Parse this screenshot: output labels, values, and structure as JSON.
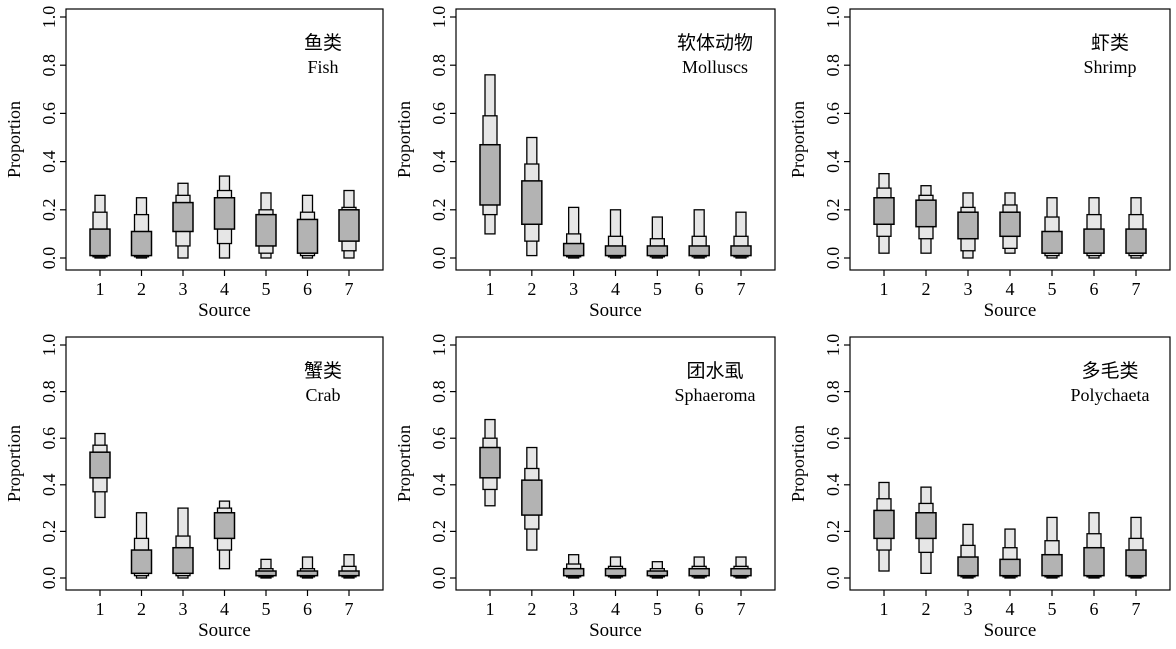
{
  "chart_data": [
    {
      "type": "boxplot",
      "title_cn": "鱼类",
      "title_en": "Fish",
      "xlabel": "Source",
      "ylabel": "Proportion",
      "ylim": [
        0,
        1
      ],
      "yticks": [
        "0.0",
        "0.2",
        "0.4",
        "0.6",
        "0.8",
        "1.0"
      ],
      "categories": [
        "1",
        "2",
        "3",
        "4",
        "5",
        "6",
        "7"
      ],
      "boxes": [
        {
          "q025": 0.0,
          "q05": 0.005,
          "q25": 0.01,
          "median": 0.05,
          "q75": 0.12,
          "q95": 0.19,
          "q975": 0.26
        },
        {
          "q025": 0.0,
          "q05": 0.005,
          "q25": 0.01,
          "median": 0.04,
          "q75": 0.11,
          "q95": 0.18,
          "q975": 0.25
        },
        {
          "q025": 0.0,
          "q05": 0.05,
          "q25": 0.11,
          "median": 0.18,
          "q75": 0.23,
          "q95": 0.26,
          "q975": 0.31
        },
        {
          "q025": 0.0,
          "q05": 0.06,
          "q25": 0.12,
          "median": 0.2,
          "q75": 0.25,
          "q95": 0.28,
          "q975": 0.34
        },
        {
          "q025": 0.0,
          "q05": 0.02,
          "q25": 0.05,
          "median": 0.12,
          "q75": 0.18,
          "q95": 0.2,
          "q975": 0.27
        },
        {
          "q025": 0.0,
          "q05": 0.01,
          "q25": 0.02,
          "median": 0.08,
          "q75": 0.16,
          "q95": 0.19,
          "q975": 0.26
        },
        {
          "q025": 0.0,
          "q05": 0.03,
          "q25": 0.07,
          "median": 0.13,
          "q75": 0.2,
          "q95": 0.21,
          "q975": 0.28
        }
      ]
    },
    {
      "type": "boxplot",
      "title_cn": "软体动物",
      "title_en": "Molluscs",
      "xlabel": "Source",
      "ylabel": "Proportion",
      "ylim": [
        0,
        1
      ],
      "yticks": [
        "0.0",
        "0.2",
        "0.4",
        "0.6",
        "0.8",
        "1.0"
      ],
      "categories": [
        "1",
        "2",
        "3",
        "4",
        "5",
        "6",
        "7"
      ],
      "boxes": [
        {
          "q025": 0.1,
          "q05": 0.18,
          "q25": 0.22,
          "median": 0.36,
          "q75": 0.47,
          "q95": 0.59,
          "q975": 0.76
        },
        {
          "q025": 0.01,
          "q05": 0.07,
          "q25": 0.14,
          "median": 0.24,
          "q75": 0.32,
          "q95": 0.39,
          "q975": 0.5
        },
        {
          "q025": 0.0,
          "q05": 0.005,
          "q25": 0.01,
          "median": 0.02,
          "q75": 0.06,
          "q95": 0.1,
          "q975": 0.21
        },
        {
          "q025": 0.0,
          "q05": 0.005,
          "q25": 0.01,
          "median": 0.02,
          "q75": 0.05,
          "q95": 0.09,
          "q975": 0.2
        },
        {
          "q025": 0.0,
          "q05": 0.005,
          "q25": 0.01,
          "median": 0.02,
          "q75": 0.05,
          "q95": 0.08,
          "q975": 0.17
        },
        {
          "q025": 0.0,
          "q05": 0.005,
          "q25": 0.01,
          "median": 0.02,
          "q75": 0.05,
          "q95": 0.09,
          "q975": 0.2
        },
        {
          "q025": 0.0,
          "q05": 0.005,
          "q25": 0.01,
          "median": 0.02,
          "q75": 0.05,
          "q95": 0.09,
          "q975": 0.19
        }
      ]
    },
    {
      "type": "boxplot",
      "title_cn": "虾类",
      "title_en": "Shrimp",
      "xlabel": "Source",
      "ylabel": "Proportion",
      "ylim": [
        0,
        1
      ],
      "yticks": [
        "0.0",
        "0.2",
        "0.4",
        "0.6",
        "0.8",
        "1.0"
      ],
      "categories": [
        "1",
        "2",
        "3",
        "4",
        "5",
        "6",
        "7"
      ],
      "boxes": [
        {
          "q025": 0.02,
          "q05": 0.09,
          "q25": 0.14,
          "median": 0.2,
          "q75": 0.25,
          "q95": 0.29,
          "q975": 0.35
        },
        {
          "q025": 0.02,
          "q05": 0.08,
          "q25": 0.13,
          "median": 0.19,
          "q75": 0.24,
          "q95": 0.26,
          "q975": 0.3
        },
        {
          "q025": 0.0,
          "q05": 0.03,
          "q25": 0.08,
          "median": 0.13,
          "q75": 0.19,
          "q95": 0.21,
          "q975": 0.27
        },
        {
          "q025": 0.02,
          "q05": 0.04,
          "q25": 0.09,
          "median": 0.15,
          "q75": 0.19,
          "q95": 0.22,
          "q975": 0.27
        },
        {
          "q025": 0.0,
          "q05": 0.01,
          "q25": 0.02,
          "median": 0.06,
          "q75": 0.11,
          "q95": 0.17,
          "q975": 0.25
        },
        {
          "q025": 0.0,
          "q05": 0.01,
          "q25": 0.02,
          "median": 0.07,
          "q75": 0.12,
          "q95": 0.18,
          "q975": 0.25
        },
        {
          "q025": 0.0,
          "q05": 0.01,
          "q25": 0.02,
          "median": 0.07,
          "q75": 0.12,
          "q95": 0.18,
          "q975": 0.25
        }
      ]
    },
    {
      "type": "boxplot",
      "title_cn": "蟹类",
      "title_en": "Crab",
      "xlabel": "Source",
      "ylabel": "Proportion",
      "ylim": [
        0,
        1
      ],
      "yticks": [
        "0.0",
        "0.2",
        "0.4",
        "0.6",
        "0.8",
        "1.0"
      ],
      "categories": [
        "1",
        "2",
        "3",
        "4",
        "5",
        "6",
        "7"
      ],
      "boxes": [
        {
          "q025": 0.26,
          "q05": 0.37,
          "q25": 0.43,
          "median": 0.48,
          "q75": 0.54,
          "q95": 0.57,
          "q975": 0.62
        },
        {
          "q025": 0.0,
          "q05": 0.01,
          "q25": 0.02,
          "median": 0.05,
          "q75": 0.12,
          "q95": 0.17,
          "q975": 0.28
        },
        {
          "q025": 0.0,
          "q05": 0.01,
          "q25": 0.02,
          "median": 0.06,
          "q75": 0.13,
          "q95": 0.18,
          "q975": 0.3
        },
        {
          "q025": 0.04,
          "q05": 0.12,
          "q25": 0.17,
          "median": 0.22,
          "q75": 0.28,
          "q95": 0.3,
          "q975": 0.33
        },
        {
          "q025": 0.0,
          "q05": 0.005,
          "q25": 0.01,
          "median": 0.02,
          "q75": 0.03,
          "q95": 0.04,
          "q975": 0.08
        },
        {
          "q025": 0.0,
          "q05": 0.005,
          "q25": 0.01,
          "median": 0.02,
          "q75": 0.03,
          "q95": 0.04,
          "q975": 0.09
        },
        {
          "q025": 0.0,
          "q05": 0.005,
          "q25": 0.01,
          "median": 0.02,
          "q75": 0.03,
          "q95": 0.05,
          "q975": 0.1
        }
      ]
    },
    {
      "type": "boxplot",
      "title_cn": "团水虱",
      "title_en": "Sphaeroma",
      "xlabel": "Source",
      "ylabel": "Proportion",
      "ylim": [
        0,
        1
      ],
      "yticks": [
        "0.0",
        "0.2",
        "0.4",
        "0.6",
        "0.8",
        "1.0"
      ],
      "categories": [
        "1",
        "2",
        "3",
        "4",
        "5",
        "6",
        "7"
      ],
      "boxes": [
        {
          "q025": 0.31,
          "q05": 0.38,
          "q25": 0.43,
          "median": 0.49,
          "q75": 0.56,
          "q95": 0.6,
          "q975": 0.68
        },
        {
          "q025": 0.12,
          "q05": 0.21,
          "q25": 0.27,
          "median": 0.35,
          "q75": 0.42,
          "q95": 0.47,
          "q975": 0.56
        },
        {
          "q025": 0.0,
          "q05": 0.005,
          "q25": 0.01,
          "median": 0.02,
          "q75": 0.04,
          "q95": 0.06,
          "q975": 0.1
        },
        {
          "q025": 0.0,
          "q05": 0.005,
          "q25": 0.01,
          "median": 0.02,
          "q75": 0.04,
          "q95": 0.05,
          "q975": 0.09
        },
        {
          "q025": 0.0,
          "q05": 0.005,
          "q25": 0.01,
          "median": 0.02,
          "q75": 0.03,
          "q95": 0.04,
          "q975": 0.07
        },
        {
          "q025": 0.0,
          "q05": 0.005,
          "q25": 0.01,
          "median": 0.02,
          "q75": 0.04,
          "q95": 0.05,
          "q975": 0.09
        },
        {
          "q025": 0.0,
          "q05": 0.005,
          "q25": 0.01,
          "median": 0.02,
          "q75": 0.04,
          "q95": 0.05,
          "q975": 0.09
        }
      ]
    },
    {
      "type": "boxplot",
      "title_cn": "多毛类",
      "title_en": "Polychaeta",
      "xlabel": "Source",
      "ylabel": "Proportion",
      "ylim": [
        0,
        1
      ],
      "yticks": [
        "0.0",
        "0.2",
        "0.4",
        "0.6",
        "0.8",
        "1.0"
      ],
      "categories": [
        "1",
        "2",
        "3",
        "4",
        "5",
        "6",
        "7"
      ],
      "boxes": [
        {
          "q025": 0.03,
          "q05": 0.12,
          "q25": 0.17,
          "median": 0.23,
          "q75": 0.29,
          "q95": 0.34,
          "q975": 0.41
        },
        {
          "q025": 0.02,
          "q05": 0.11,
          "q25": 0.17,
          "median": 0.22,
          "q75": 0.28,
          "q95": 0.32,
          "q975": 0.39
        },
        {
          "q025": 0.0,
          "q05": 0.005,
          "q25": 0.01,
          "median": 0.04,
          "q75": 0.09,
          "q95": 0.14,
          "q975": 0.23
        },
        {
          "q025": 0.0,
          "q05": 0.005,
          "q25": 0.01,
          "median": 0.03,
          "q75": 0.08,
          "q95": 0.13,
          "q975": 0.21
        },
        {
          "q025": 0.0,
          "q05": 0.005,
          "q25": 0.01,
          "median": 0.05,
          "q75": 0.1,
          "q95": 0.16,
          "q975": 0.26
        },
        {
          "q025": 0.0,
          "q05": 0.005,
          "q25": 0.01,
          "median": 0.06,
          "q75": 0.13,
          "q95": 0.19,
          "q975": 0.28
        },
        {
          "q025": 0.0,
          "q05": 0.005,
          "q25": 0.01,
          "median": 0.05,
          "q75": 0.12,
          "q95": 0.17,
          "q975": 0.26
        }
      ]
    }
  ],
  "colors": {
    "box_fill": "#b3b3b3",
    "outer_fill": "#e6e6e6",
    "stroke": "#000000"
  }
}
